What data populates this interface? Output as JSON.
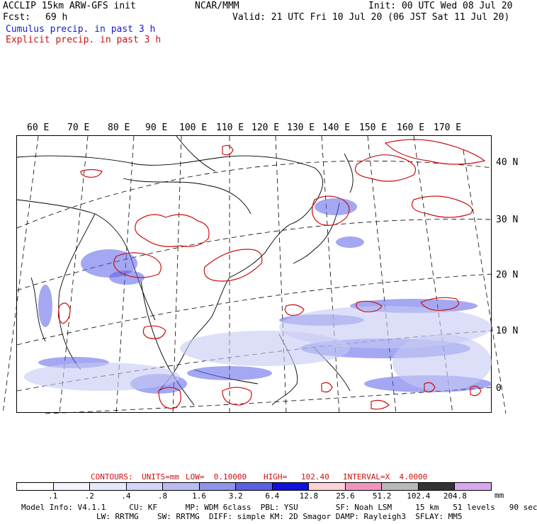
{
  "header": {
    "title_left": "ACCLIP 15km ARW-GFS init",
    "center": "NCAR/MMM",
    "init": "Init: 00 UTC Wed 08 Jul 20",
    "fcst_label": "Fcst:",
    "fcst_value": "69 h",
    "valid": "Valid: 21 UTC Fri 10 Jul 20 (06 JST Sat 11 Jul 20)",
    "cumulus": "Cumulus precip. in past 3 h",
    "explicit": "Explicit precip. in past 3 h"
  },
  "colors": {
    "cumulus": "#1a1acc",
    "explicit": "#cc1111"
  },
  "map": {
    "lon_labels": [
      "60 E",
      "70 E",
      "80 E",
      "90 E",
      "100 E",
      "110 E",
      "120 E",
      "130 E",
      "140 E",
      "150 E",
      "160 E",
      "170 E"
    ],
    "lat_labels": [
      "40 N",
      "30 N",
      "20 N",
      "10 N",
      "0"
    ]
  },
  "contours": {
    "label": "CONTOURS:",
    "units": "UNITS=mm",
    "low": "LOW=  0.10000",
    "high": "HIGH=   102.40",
    "interval": "INTERVAL=X  4.0000"
  },
  "legend": {
    "ticks": [
      ".1",
      ".2",
      ".4",
      ".8",
      "1.6",
      "3.2",
      "6.4",
      "12.8",
      "25.6",
      "51.2",
      "102.4",
      "204.8"
    ],
    "unit": "mm",
    "swatch_colors": [
      "#ffffff",
      "#f4f4ff",
      "#e6e8fb",
      "#d3d6f6",
      "#b8bcf0",
      "#8f94ea",
      "#5a5fe6",
      "#1010e0",
      "#fbd2d6",
      "#f095bf",
      "#b9b9b9",
      "#333333",
      "#d7a8f1"
    ]
  },
  "footer": {
    "line1": "Model Info: V4.1.1     CU: KF      MP: WDM 6class  PBL: YSU        SF: Noah LSM     15 km   51 levels   90 sec",
    "line2": "                LW: RRTMG    SW: RRTMG  DIFF: simple KM: 2D Smagor DAMP: Rayleigh3  SFLAY: MM5"
  }
}
